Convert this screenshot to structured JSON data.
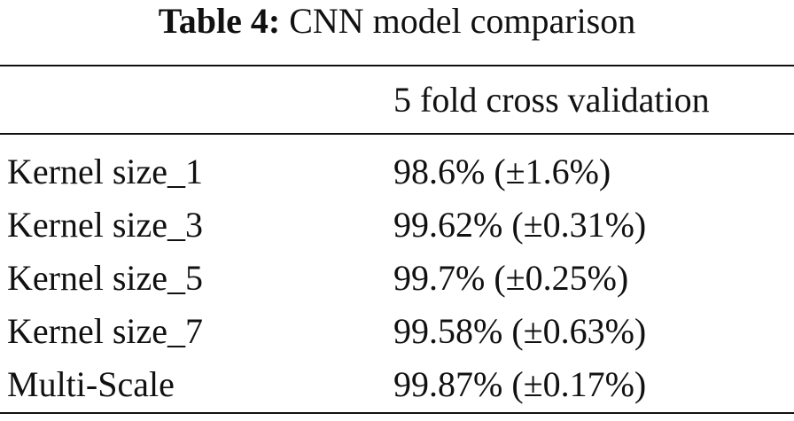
{
  "caption": {
    "label": "Table 4:",
    "text": "CNN model comparison"
  },
  "table": {
    "column_header": "5 fold cross validation",
    "rows": [
      {
        "model": "Kernel size_1",
        "score": "98.6% (±1.6%)"
      },
      {
        "model": "Kernel size_3",
        "score": "99.62% (±0.31%)"
      },
      {
        "model": "Kernel size_5",
        "score": "99.7% (±0.25%)"
      },
      {
        "model": "Kernel size_7",
        "score": "99.58% (±0.63%)"
      },
      {
        "model": "Multi-Scale",
        "score": "99.87% (±0.17%)"
      }
    ]
  }
}
